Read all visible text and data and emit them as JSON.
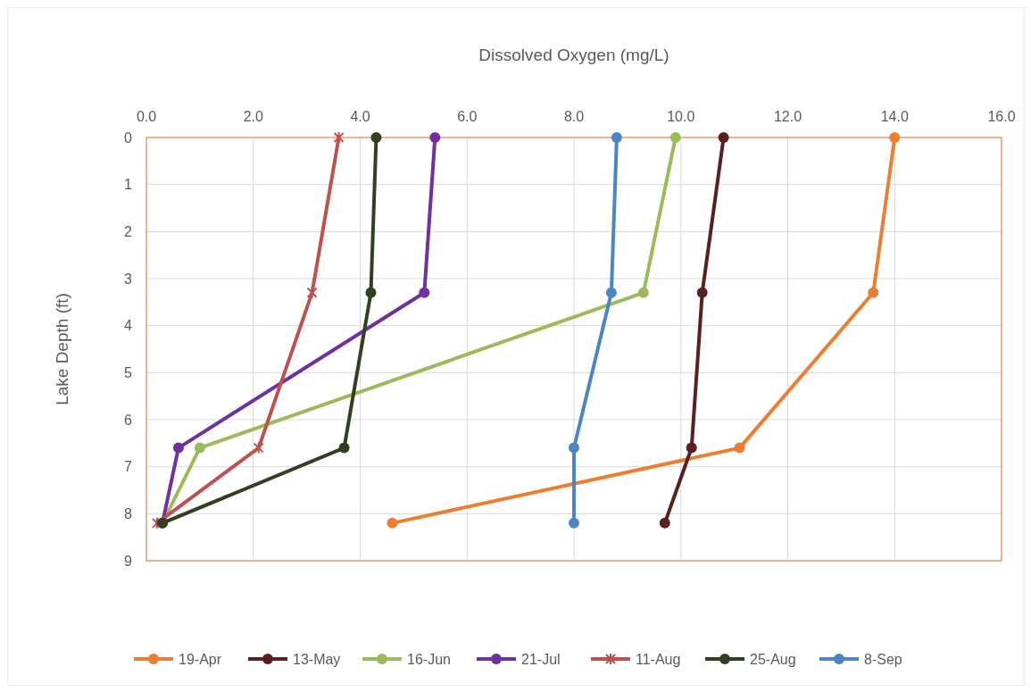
{
  "chart_data": {
    "type": "line",
    "xlabel": "Dissolved Oxygen (mg/L)",
    "ylabel": "Lake Depth (ft)",
    "xlim": [
      0,
      16
    ],
    "xticks": [
      {
        "value": 0,
        "label": "0.0"
      },
      {
        "value": 2,
        "label": "2.0"
      },
      {
        "value": 4,
        "label": "4.0"
      },
      {
        "value": 6,
        "label": "6.0"
      },
      {
        "value": 8,
        "label": "8.0"
      },
      {
        "value": 10,
        "label": "10.0"
      },
      {
        "value": 12,
        "label": "12.0"
      },
      {
        "value": 14,
        "label": "14.0"
      },
      {
        "value": 16,
        "label": "16.0"
      }
    ],
    "ylim": [
      9,
      0
    ],
    "yticks": [
      0,
      1,
      2,
      3,
      4,
      5,
      6,
      7,
      8,
      9
    ],
    "grid": true,
    "legend": "bottom",
    "series": [
      {
        "name": "19-Apr",
        "color": "#ed7d31",
        "marker": "circle",
        "x": [
          14.0,
          13.6,
          11.1,
          4.6
        ],
        "values": [
          0,
          3.3,
          6.6,
          8.2
        ]
      },
      {
        "name": "13-May",
        "color": "#5a1f1f",
        "marker": "circle",
        "x": [
          10.8,
          10.4,
          10.2,
          9.7
        ],
        "values": [
          0,
          3.3,
          6.6,
          8.2
        ]
      },
      {
        "name": "16-Jun",
        "color": "#9bbb59",
        "marker": "circle",
        "x": [
          9.9,
          9.3,
          1.0,
          0.3
        ],
        "values": [
          0,
          3.3,
          6.6,
          8.2
        ]
      },
      {
        "name": "21-Jul",
        "color": "#7030a0",
        "marker": "circle",
        "x": [
          5.4,
          5.2,
          0.6,
          0.3
        ],
        "values": [
          0,
          3.3,
          6.6,
          8.2
        ]
      },
      {
        "name": "11-Aug",
        "color": "#c0504d",
        "marker": "cross",
        "x": [
          3.6,
          3.1,
          2.1,
          0.2
        ],
        "values": [
          0,
          3.3,
          6.6,
          8.2
        ]
      },
      {
        "name": "25-Aug",
        "color": "#333f22",
        "marker": "circle",
        "x": [
          4.3,
          4.2,
          3.7,
          0.3
        ],
        "values": [
          0,
          3.3,
          6.6,
          8.2
        ]
      },
      {
        "name": "8-Sep",
        "color": "#4a86c6",
        "marker": "circle",
        "x": [
          8.8,
          8.7,
          8.0,
          8.0
        ],
        "values": [
          0,
          3.3,
          6.6,
          8.2
        ]
      }
    ]
  }
}
